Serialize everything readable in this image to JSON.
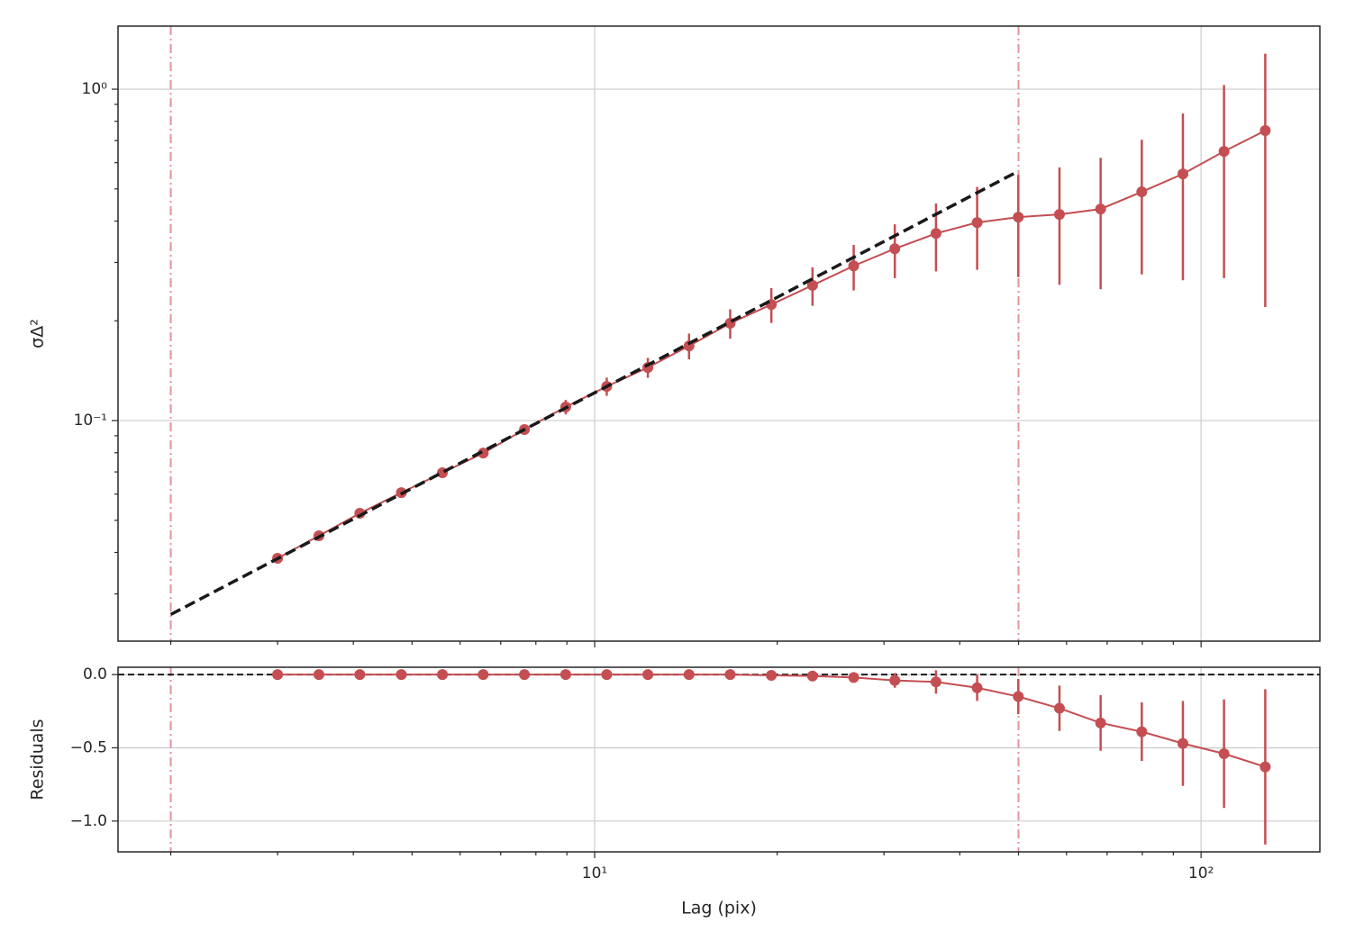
{
  "chart_data": [
    {
      "type": "errorbar",
      "xscale": "log",
      "yscale": "log",
      "grid": true,
      "ylabel": "σΔ²",
      "xlim": [
        1.637,
        157
      ],
      "ylim": [
        0.0216,
        1.55
      ],
      "xticks": [
        10,
        100
      ],
      "xminorticks": [
        2,
        3,
        4,
        5,
        6,
        7,
        8,
        9,
        20,
        30,
        40,
        50,
        60,
        70,
        80,
        90
      ],
      "yticks": [
        {
          "value": 1,
          "label": "10⁰"
        },
        {
          "value": 0.1,
          "label": "10⁻¹"
        }
      ],
      "yminorticks": [
        0.03,
        0.04,
        0.05,
        0.06,
        0.07,
        0.08,
        0.09,
        0.2,
        0.3,
        0.4,
        0.5,
        0.6,
        0.7,
        0.8,
        0.9
      ],
      "vlines": [
        2,
        50
      ],
      "vline_color": "#e0959a",
      "series": [
        {
          "color": "#c44e52",
          "style": "errorbar",
          "x": [
            3.0,
            3.51,
            4.1,
            4.8,
            5.61,
            6.55,
            7.66,
            8.96,
            10.47,
            12.24,
            14.31,
            16.73,
            19.56,
            22.87,
            26.74,
            31.26,
            36.55,
            42.73,
            49.96,
            58.41,
            68.29,
            79.84,
            93.33,
            109.1,
            127.6
          ],
          "values": [
            0.0384,
            0.0449,
            0.0525,
            0.0606,
            0.0696,
            0.0798,
            0.094,
            0.1099,
            0.1268,
            0.1446,
            0.168,
            0.1966,
            0.224,
            0.256,
            0.293,
            0.33,
            0.367,
            0.396,
            0.411,
            0.419,
            0.435,
            0.49,
            0.555,
            0.649,
            0.75
          ],
          "errors": [
            0.0006,
            0.0008,
            0.001,
            0.001,
            0.0015,
            0.002,
            0.003,
            0.0055,
            0.008,
            0.01,
            0.015,
            0.02,
            0.027,
            0.034,
            0.046,
            0.061,
            0.085,
            0.111,
            0.14,
            0.162,
            0.186,
            0.214,
            0.29,
            0.38,
            0.53
          ]
        },
        {
          "color": "#1a1a1a",
          "style": "dashed",
          "x": [
            2,
            50
          ],
          "values": [
            0.026,
            0.566
          ]
        }
      ]
    },
    {
      "type": "errorbar",
      "xscale": "log",
      "yscale": "linear",
      "grid": true,
      "ylabel": "Residuals",
      "xlabel": "Lag (pix)",
      "xlim": [
        1.637,
        157
      ],
      "ylim": [
        -1.21,
        0.05
      ],
      "xticks": [
        {
          "value": 10,
          "label": "10¹"
        },
        {
          "value": 100,
          "label": "10²"
        }
      ],
      "xminorticks": [
        2,
        3,
        4,
        5,
        6,
        7,
        8,
        9,
        20,
        30,
        40,
        50,
        60,
        70,
        80,
        90
      ],
      "yticks": [
        {
          "value": 0,
          "label": "0.0"
        },
        {
          "value": -0.5,
          "label": "−0.5"
        },
        {
          "value": -1,
          "label": "−1.0"
        }
      ],
      "vlines": [
        2,
        50
      ],
      "vline_color": "#e0959a",
      "hline": 0,
      "series": [
        {
          "color": "#c44e52",
          "style": "errorbar",
          "x": [
            3.0,
            3.51,
            4.1,
            4.8,
            5.61,
            6.55,
            7.66,
            8.96,
            10.47,
            12.24,
            14.31,
            16.73,
            19.56,
            22.87,
            26.74,
            31.26,
            36.55,
            42.73,
            49.96,
            58.41,
            68.29,
            79.84,
            93.33,
            109.1,
            127.6
          ],
          "values": [
            0,
            0,
            0,
            0,
            0,
            0,
            0,
            0,
            0,
            0,
            0,
            0,
            -0.005,
            -0.01,
            -0.02,
            -0.04,
            -0.05,
            -0.09,
            -0.15,
            -0.23,
            -0.33,
            -0.39,
            -0.47,
            -0.54,
            -0.63
          ],
          "errors": [
            0.002,
            0.002,
            0.002,
            0.002,
            0.003,
            0.003,
            0.004,
            0.005,
            0.006,
            0.007,
            0.008,
            0.01,
            0.015,
            0.02,
            0.03,
            0.05,
            0.08,
            0.09,
            0.12,
            0.155,
            0.19,
            0.2,
            0.29,
            0.37,
            0.53
          ]
        }
      ]
    }
  ]
}
